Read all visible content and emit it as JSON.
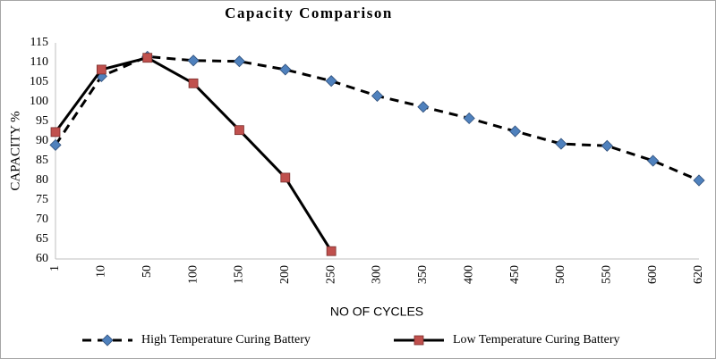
{
  "chart_data": {
    "type": "line",
    "title": "Capacity Comparison",
    "xlabel": "NO OF CYCLES",
    "ylabel": "CAPACITY %",
    "categories": [
      "1",
      "10",
      "50",
      "100",
      "150",
      "200",
      "250",
      "300",
      "350",
      "400",
      "450",
      "500",
      "550",
      "600",
      "620"
    ],
    "series": [
      {
        "name": "High Temperature Curing Battery",
        "color": "#4f81bd",
        "line_color": "#000000",
        "dashed": true,
        "marker": "diamond",
        "values": [
          89,
          106.5,
          111.5,
          110.5,
          110.3,
          108.2,
          105.3,
          101.5,
          98.7,
          95.8,
          92.5,
          89.3,
          88.8,
          85,
          80
        ]
      },
      {
        "name": "Low Temperature Curing Battery",
        "color": "#c0504d",
        "line_color": "#000000",
        "dashed": false,
        "marker": "square",
        "values": [
          92.3,
          108.2,
          111.2,
          104.7,
          92.8,
          80.7,
          62,
          null,
          null,
          null,
          null,
          null,
          null,
          null,
          null
        ]
      }
    ],
    "ylim": [
      60,
      115
    ],
    "yticks": [
      60,
      65,
      70,
      75,
      80,
      85,
      90,
      95,
      100,
      105,
      110,
      115
    ],
    "grid": false,
    "legend": "bottom"
  }
}
